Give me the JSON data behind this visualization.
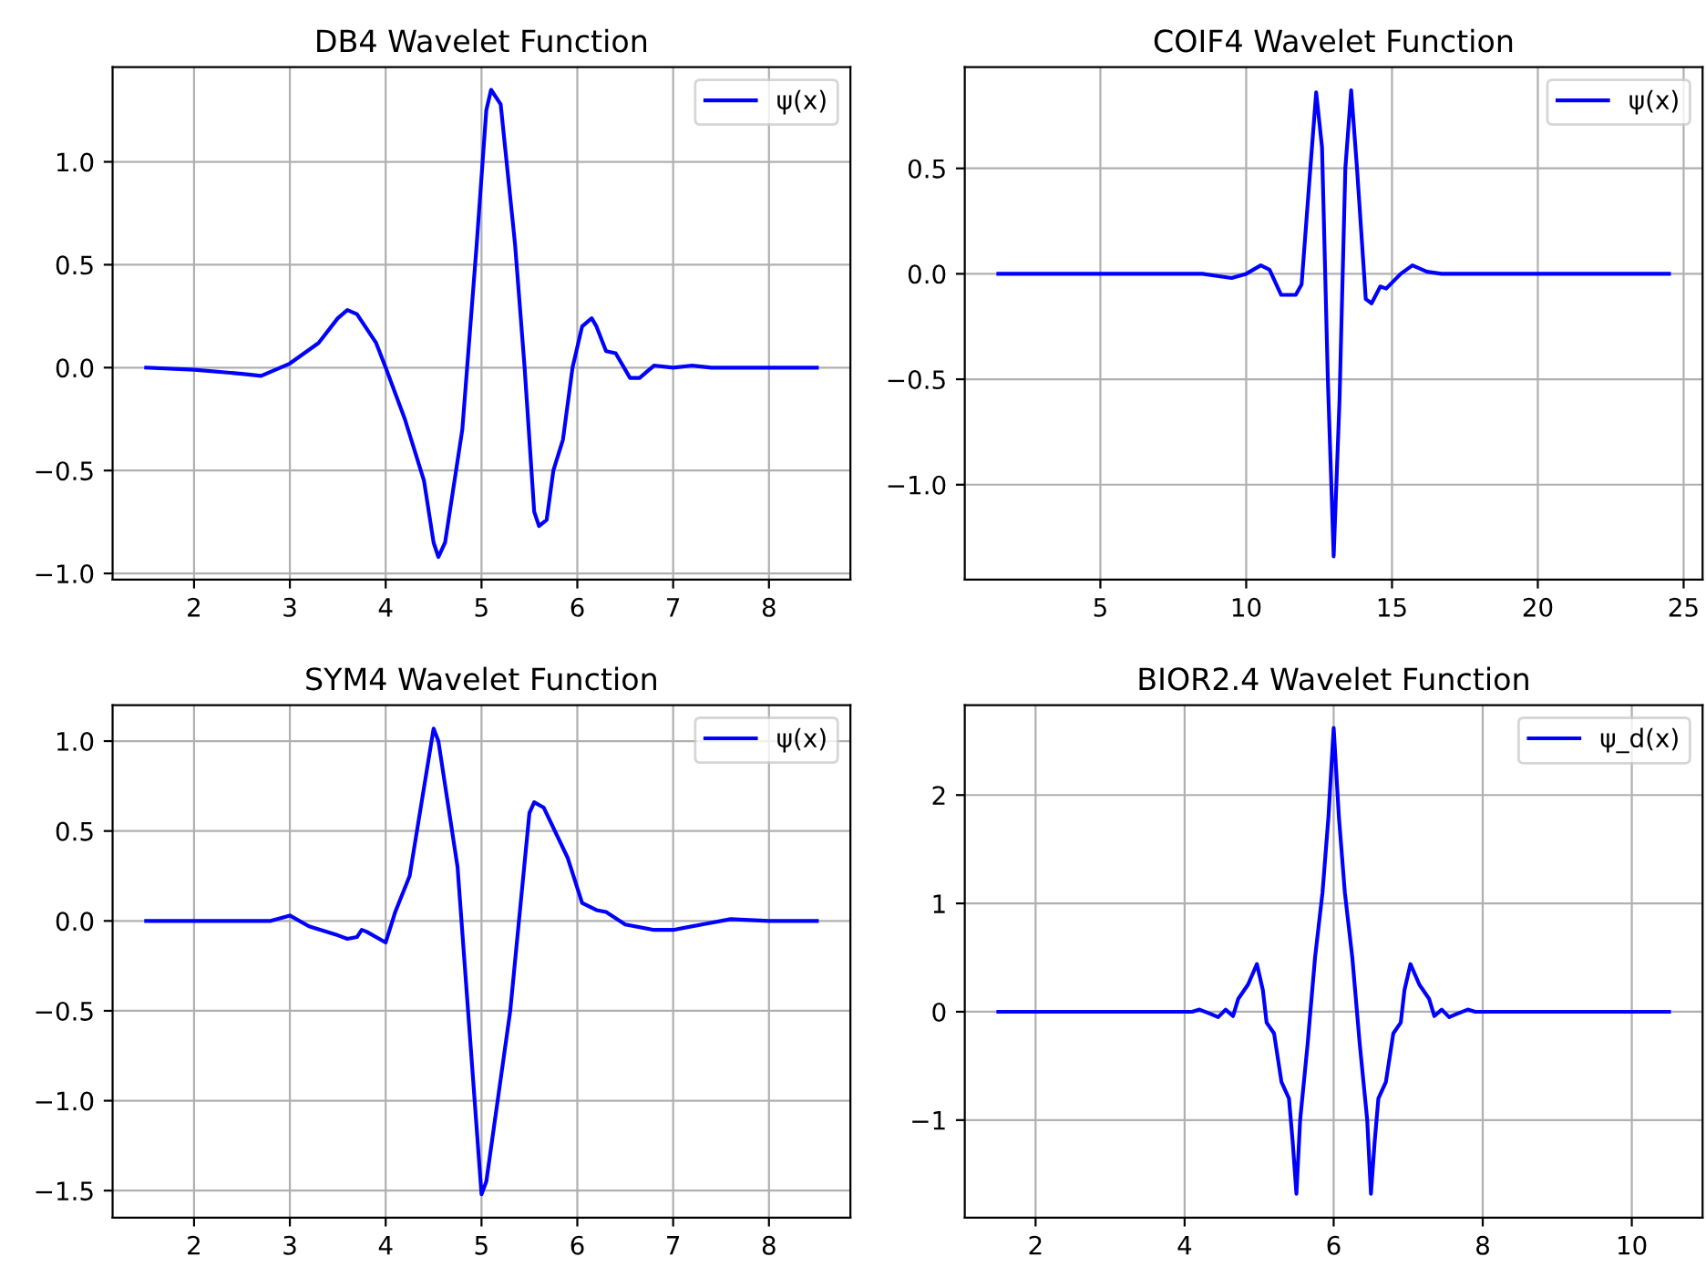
{
  "chart_data": [
    {
      "type": "line",
      "title": "DB4 Wavelet Function",
      "grid": true,
      "legend": "top right",
      "xlim": [
        1.15,
        8.85
      ],
      "ylim": [
        -1.03,
        1.46
      ],
      "xticks": [
        2,
        3,
        4,
        5,
        6,
        7,
        8
      ],
      "yticks": [
        {
          "value": -1.0,
          "label": "−1.0"
        },
        {
          "value": -0.5,
          "label": "−0.5"
        },
        {
          "value": 0.0,
          "label": "0.0"
        },
        {
          "value": 0.5,
          "label": "0.5"
        },
        {
          "value": 1.0,
          "label": "1.0"
        }
      ],
      "series": [
        {
          "name": "ψ(x)",
          "color": "#0000ff",
          "x": [
            1.5,
            2.0,
            2.5,
            2.7,
            3.0,
            3.3,
            3.5,
            3.6,
            3.7,
            3.9,
            4.0,
            4.2,
            4.4,
            4.5,
            4.55,
            4.62,
            4.8,
            4.95,
            5.05,
            5.1,
            5.2,
            5.35,
            5.45,
            5.55,
            5.6,
            5.68,
            5.75,
            5.85,
            5.95,
            6.05,
            6.15,
            6.2,
            6.3,
            6.4,
            6.55,
            6.65,
            6.8,
            7.0,
            7.2,
            7.4,
            8.5
          ],
          "values": [
            0,
            -0.01,
            -0.03,
            -0.04,
            0.02,
            0.12,
            0.24,
            0.28,
            0.26,
            0.12,
            0.0,
            -0.25,
            -0.55,
            -0.85,
            -0.92,
            -0.85,
            -0.3,
            0.6,
            1.25,
            1.35,
            1.28,
            0.6,
            0.0,
            -0.7,
            -0.77,
            -0.74,
            -0.5,
            -0.35,
            0.0,
            0.2,
            0.24,
            0.2,
            0.08,
            0.07,
            -0.05,
            -0.05,
            0.01,
            0.0,
            0.01,
            0.0,
            0
          ]
        }
      ]
    },
    {
      "type": "line",
      "title": "COIF4 Wavelet Function",
      "grid": true,
      "legend": "top right",
      "xlim": [
        0.35,
        25.65
      ],
      "ylim": [
        -1.45,
        0.98
      ],
      "xticks": [
        5,
        10,
        15,
        20,
        25
      ],
      "yticks": [
        {
          "value": -1.0,
          "label": "−1.0"
        },
        {
          "value": -0.5,
          "label": "−0.5"
        },
        {
          "value": 0.0,
          "label": "0.0"
        },
        {
          "value": 0.5,
          "label": "0.5"
        }
      ],
      "series": [
        {
          "name": "ψ(x)",
          "color": "#0000ff",
          "x": [
            1.5,
            8.5,
            9.0,
            9.5,
            10.0,
            10.5,
            10.8,
            11.2,
            11.7,
            11.9,
            12.2,
            12.4,
            12.6,
            12.8,
            13.0,
            13.2,
            13.4,
            13.6,
            13.8,
            14.1,
            14.3,
            14.6,
            14.8,
            15.3,
            15.7,
            16.2,
            16.7,
            24.5
          ],
          "values": [
            0,
            0,
            -0.01,
            -0.02,
            0.0,
            0.04,
            0.02,
            -0.1,
            -0.1,
            -0.05,
            0.5,
            0.86,
            0.6,
            -0.5,
            -1.34,
            -0.6,
            0.5,
            0.87,
            0.5,
            -0.12,
            -0.14,
            -0.06,
            -0.07,
            0.0,
            0.04,
            0.01,
            0.0,
            0
          ]
        }
      ]
    },
    {
      "type": "line",
      "title": "SYM4 Wavelet Function",
      "grid": true,
      "legend": "top right",
      "xlim": [
        1.15,
        8.85
      ],
      "ylim": [
        -1.65,
        1.2
      ],
      "xticks": [
        2,
        3,
        4,
        5,
        6,
        7,
        8
      ],
      "yticks": [
        {
          "value": -1.5,
          "label": "−1.5"
        },
        {
          "value": -1.0,
          "label": "−1.0"
        },
        {
          "value": -0.5,
          "label": "−0.5"
        },
        {
          "value": 0.0,
          "label": "0.0"
        },
        {
          "value": 0.5,
          "label": "0.5"
        },
        {
          "value": 1.0,
          "label": "1.0"
        }
      ],
      "series": [
        {
          "name": "ψ(x)",
          "color": "#0000ff",
          "x": [
            1.5,
            2.5,
            2.8,
            3.0,
            3.2,
            3.5,
            3.6,
            3.7,
            3.75,
            3.8,
            4.0,
            4.1,
            4.25,
            4.5,
            4.55,
            4.75,
            5.0,
            5.05,
            5.3,
            5.5,
            5.55,
            5.65,
            5.9,
            6.05,
            6.2,
            6.3,
            6.5,
            6.8,
            7.0,
            7.3,
            7.6,
            8.0,
            8.5
          ],
          "values": [
            0,
            0,
            0.0,
            0.03,
            -0.03,
            -0.08,
            -0.1,
            -0.09,
            -0.05,
            -0.06,
            -0.12,
            0.05,
            0.25,
            1.07,
            1.0,
            0.3,
            -1.52,
            -1.45,
            -0.5,
            0.6,
            0.66,
            0.63,
            0.35,
            0.1,
            0.06,
            0.05,
            -0.02,
            -0.05,
            -0.05,
            -0.02,
            0.01,
            0.0,
            0
          ]
        }
      ]
    },
    {
      "type": "line",
      "title": "BIOR2.4 Wavelet Function",
      "grid": true,
      "legend": "top right",
      "xlim": [
        1.05,
        10.95
      ],
      "ylim": [
        -1.9,
        2.83
      ],
      "xticks": [
        2,
        4,
        6,
        8,
        10
      ],
      "yticks": [
        {
          "value": -1,
          "label": "−1"
        },
        0,
        1,
        2
      ],
      "series": [
        {
          "name": "ψ_d(x)",
          "color": "#0000ff",
          "x": [
            1.5,
            4.1,
            4.2,
            4.35,
            4.45,
            4.55,
            4.65,
            4.72,
            4.85,
            4.97,
            5.05,
            5.1,
            5.2,
            5.3,
            5.4,
            5.45,
            5.5,
            5.55,
            5.65,
            5.75,
            5.85,
            5.93,
            6.0,
            6.07,
            6.15,
            6.25,
            6.35,
            6.45,
            6.5,
            6.55,
            6.6,
            6.7,
            6.8,
            6.9,
            6.95,
            7.03,
            7.15,
            7.28,
            7.35,
            7.45,
            7.55,
            7.65,
            7.8,
            7.9,
            10.5
          ],
          "values": [
            0,
            0,
            0.02,
            -0.02,
            -0.05,
            0.02,
            -0.04,
            0.12,
            0.25,
            0.44,
            0.2,
            -0.1,
            -0.2,
            -0.65,
            -0.8,
            -1.2,
            -1.68,
            -1.0,
            -0.3,
            0.5,
            1.1,
            1.8,
            2.62,
            1.8,
            1.1,
            0.5,
            -0.3,
            -1.0,
            -1.68,
            -1.2,
            -0.8,
            -0.65,
            -0.2,
            -0.1,
            0.2,
            0.44,
            0.25,
            0.12,
            -0.04,
            0.02,
            -0.05,
            -0.02,
            0.02,
            0,
            0
          ]
        }
      ]
    }
  ]
}
